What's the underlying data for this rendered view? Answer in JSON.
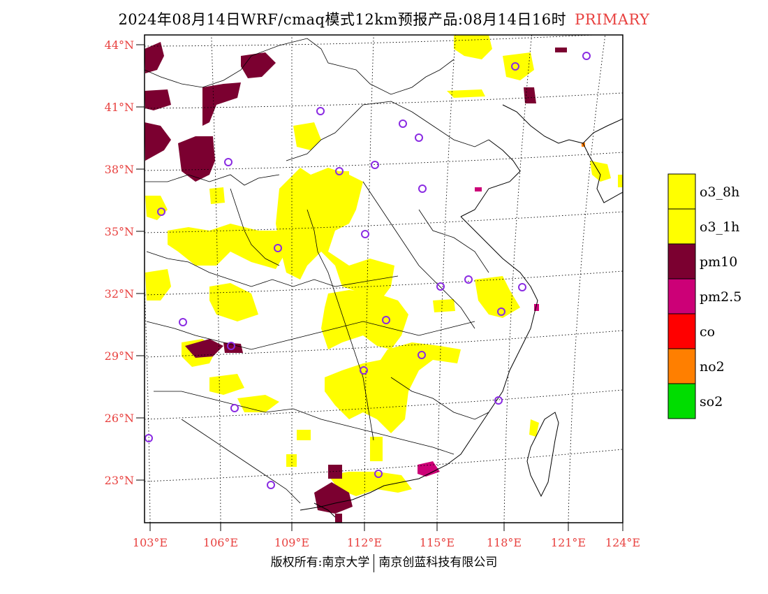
{
  "title": {
    "main": "2024年08月14日WRF/cmaq模式12km预报产品:08月14日16时",
    "tag": "PRIMARY"
  },
  "footer": {
    "left": "版权所有:南京大学",
    "right": "南京创蓝科技有限公司"
  },
  "map": {
    "projection": "lambert-conformal",
    "lat_labels": [
      "44°N",
      "41°N",
      "38°N",
      "35°N",
      "32°N",
      "29°N",
      "26°N",
      "23°N"
    ],
    "lon_labels": [
      "103°E",
      "106°E",
      "109°E",
      "112°E",
      "115°E",
      "118°E",
      "121°E",
      "124°E"
    ],
    "lat_range": [
      21,
      44.5
    ],
    "lon_range": [
      102.7,
      124
    ],
    "grid_style": "dotted",
    "label_color": "#e8413f"
  },
  "legend": {
    "placement": "right",
    "items": [
      {
        "label": "o3_8h",
        "color": "#ffff00"
      },
      {
        "label": "o3_1h",
        "color": "#ffff00"
      },
      {
        "label": "pm10",
        "color": "#7b0030"
      },
      {
        "label": "pm2.5",
        "color": "#cc0077"
      },
      {
        "label": "co",
        "color": "#ff0000"
      },
      {
        "label": "no2",
        "color": "#ff7f00"
      },
      {
        "label": "so2",
        "color": "#00dd00"
      }
    ]
  },
  "stations_marker": {
    "color": "#8a2be2",
    "icon": "circle-outline"
  }
}
